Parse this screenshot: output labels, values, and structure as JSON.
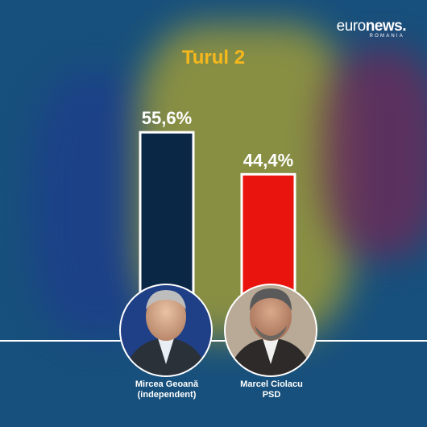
{
  "brand": {
    "logo_main": "euro",
    "logo_bold": "news.",
    "logo_sub": "ROMANIA"
  },
  "colors": {
    "bar_geoana": "#0b2746",
    "bar_ciolacu": "#e8140d",
    "title": "#f6b81c",
    "background": "#17507c"
  },
  "chart_data": {
    "type": "bar",
    "title": "Turul 2",
    "categories": [
      "Mircea Geoană (independent)",
      "Marcel Ciolacu PSD"
    ],
    "values": [
      55.6,
      44.4
    ],
    "value_labels": [
      "55,6%",
      "44,4%"
    ],
    "ylim": [
      0,
      60
    ],
    "grid": false,
    "legend": "none",
    "candidates": [
      {
        "name": "Mircea Geoană",
        "party": "(independent)",
        "icon": "portrait-photo"
      },
      {
        "name": "Marcel Ciolacu",
        "party": "PSD",
        "icon": "portrait-photo"
      }
    ]
  }
}
